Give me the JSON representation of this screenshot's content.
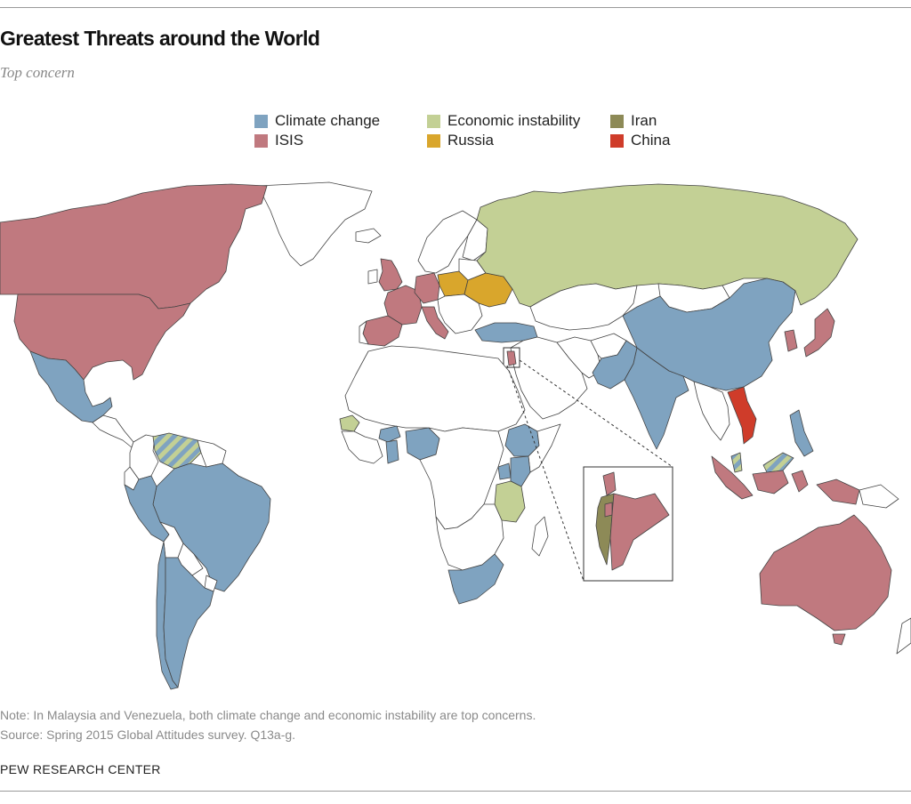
{
  "header": {
    "title": "Greatest Threats around the World",
    "subtitle": "Top concern"
  },
  "legend": [
    {
      "label": "Climate change",
      "color": "#7fa3c0",
      "key": "climate"
    },
    {
      "label": "ISIS",
      "color": "#c0797f",
      "key": "isis"
    },
    {
      "label": "Economic instability",
      "color": "#c3d095",
      "key": "economic"
    },
    {
      "label": "Russia",
      "color": "#d9a62c",
      "key": "russia"
    },
    {
      "label": "Iran",
      "color": "#8d8a57",
      "key": "iran"
    },
    {
      "label": "China",
      "color": "#cf3c2a",
      "key": "china"
    }
  ],
  "colors": {
    "climate": "#7fa3c0",
    "isis": "#c0797f",
    "economic": "#c3d095",
    "russia": "#d9a62c",
    "iran": "#8d8a57",
    "china": "#cf3c2a",
    "no_data": "#ffffff",
    "border": "#444444"
  },
  "regions": [
    {
      "name": "Canada",
      "concern": "isis"
    },
    {
      "name": "United States",
      "concern": "isis"
    },
    {
      "name": "Mexico",
      "concern": "climate"
    },
    {
      "name": "Venezuela",
      "concern": "climate+economic"
    },
    {
      "name": "Brazil",
      "concern": "climate"
    },
    {
      "name": "Peru",
      "concern": "climate"
    },
    {
      "name": "Chile",
      "concern": "climate"
    },
    {
      "name": "Argentina",
      "concern": "climate"
    },
    {
      "name": "United Kingdom",
      "concern": "isis"
    },
    {
      "name": "France",
      "concern": "isis"
    },
    {
      "name": "Spain",
      "concern": "isis"
    },
    {
      "name": "Germany",
      "concern": "isis"
    },
    {
      "name": "Italy",
      "concern": "isis"
    },
    {
      "name": "Poland",
      "concern": "russia"
    },
    {
      "name": "Ukraine",
      "concern": "russia"
    },
    {
      "name": "Russia",
      "concern": "economic"
    },
    {
      "name": "Turkey",
      "concern": "climate"
    },
    {
      "name": "Lebanon",
      "concern": "isis"
    },
    {
      "name": "Israel",
      "concern": "iran"
    },
    {
      "name": "Palestinian ter.",
      "concern": "isis"
    },
    {
      "name": "Jordan",
      "concern": "isis"
    },
    {
      "name": "Senegal",
      "concern": "economic"
    },
    {
      "name": "Ghana",
      "concern": "climate"
    },
    {
      "name": "Burkina Faso",
      "concern": "climate"
    },
    {
      "name": "Nigeria",
      "concern": "climate"
    },
    {
      "name": "Ethiopia",
      "concern": "climate"
    },
    {
      "name": "Uganda",
      "concern": "climate"
    },
    {
      "name": "Kenya",
      "concern": "climate"
    },
    {
      "name": "Tanzania",
      "concern": "economic"
    },
    {
      "name": "South Africa",
      "concern": "climate"
    },
    {
      "name": "Pakistan",
      "concern": "climate"
    },
    {
      "name": "India",
      "concern": "climate"
    },
    {
      "name": "China",
      "concern": "climate"
    },
    {
      "name": "South Korea",
      "concern": "isis"
    },
    {
      "name": "Japan",
      "concern": "isis"
    },
    {
      "name": "Vietnam",
      "concern": "china"
    },
    {
      "name": "Philippines",
      "concern": "climate"
    },
    {
      "name": "Malaysia",
      "concern": "climate+economic"
    },
    {
      "name": "Indonesia",
      "concern": "isis"
    },
    {
      "name": "Australia",
      "concern": "isis"
    }
  ],
  "footer": {
    "note": "Note: In Malaysia and Venezuela, both climate change and economic instability are top concerns.",
    "source": "Source: Spring 2015 Global Attitudes survey. Q13a-g.",
    "credit": "PEW RESEARCH CENTER"
  }
}
